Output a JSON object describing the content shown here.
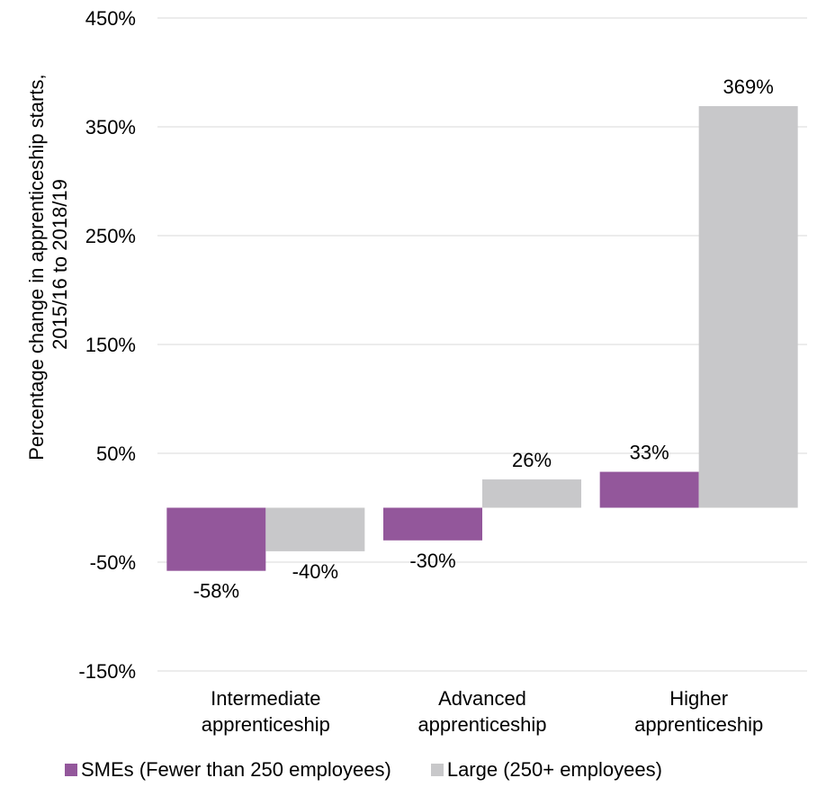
{
  "chart_data": {
    "type": "bar",
    "title": "",
    "ylabel_lines": [
      "Percentage change in apprenticeship starts,",
      "2015/16 to 2018/19"
    ],
    "categories": [
      [
        "Intermediate",
        "apprenticeship"
      ],
      [
        "Advanced",
        "apprenticeship"
      ],
      [
        "Higher",
        "apprenticeship"
      ]
    ],
    "series": [
      {
        "name": "SMEs (Fewer than 250 employees)",
        "color": "#93579b",
        "values": [
          -58,
          -30,
          33
        ],
        "labels": [
          "-58%",
          "-30%",
          "33%"
        ]
      },
      {
        "name": "Large (250+ employees)",
        "color": "#c8c8ca",
        "values": [
          -40,
          26,
          369
        ],
        "labels": [
          "-40%",
          "26%",
          "369%"
        ]
      }
    ],
    "ylim": [
      -150,
      450
    ],
    "yticks": [
      -150,
      -50,
      50,
      150,
      250,
      350,
      450
    ],
    "ytick_labels": [
      "-150%",
      "-50%",
      "50%",
      "150%",
      "250%",
      "350%",
      "450%"
    ],
    "grid": true,
    "gridline_color": "#d9d9d9",
    "legend_position": "bottom"
  }
}
